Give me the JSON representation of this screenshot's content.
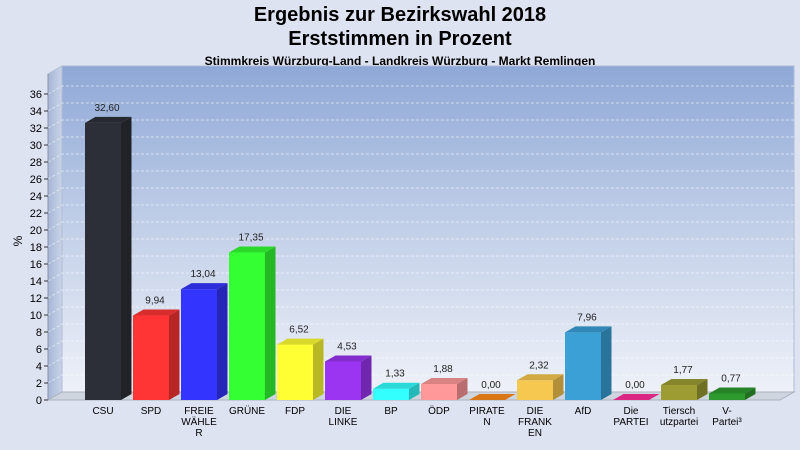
{
  "header": {
    "title_line1": "Ergebnis zur Bezirkswahl 2018",
    "title_line2": "Erststimmen in Prozent",
    "subtitle": "Stimmkreis Würzburg-Land - Landkreis Würzburg - Markt Remlingen"
  },
  "chart_data": {
    "type": "bar",
    "title": "Ergebnis zur Bezirkswahl 2018 Erststimmen in Prozent",
    "subtitle": "Stimmkreis Würzburg-Land - Landkreis Würzburg - Markt Remlingen",
    "ylabel": "%",
    "xlabel": "",
    "ylim": [
      0,
      36
    ],
    "yticks": [
      0,
      2,
      4,
      6,
      8,
      10,
      12,
      14,
      16,
      18,
      20,
      22,
      24,
      26,
      28,
      30,
      32,
      34,
      36
    ],
    "grid": true,
    "categories": [
      [
        "CSU"
      ],
      [
        "SPD"
      ],
      [
        "FREIE",
        "WÄHLE",
        "R"
      ],
      [
        "GRÜNE"
      ],
      [
        "FDP"
      ],
      [
        "DIE",
        "LINKE"
      ],
      [
        "BP"
      ],
      [
        "ÖDP"
      ],
      [
        "PIRATE",
        "N"
      ],
      [
        "DIE",
        "FRANK",
        "EN"
      ],
      [
        "AfD"
      ],
      [
        "Die",
        "PARTEI"
      ],
      [
        "Tiersch",
        "utzpartei"
      ],
      [
        "V-",
        "Partei³"
      ]
    ],
    "values": [
      32.6,
      9.94,
      13.04,
      17.35,
      6.52,
      4.53,
      1.33,
      1.88,
      0.0,
      2.32,
      7.96,
      0.0,
      1.77,
      0.77
    ],
    "value_labels": [
      "32,60",
      "9,94",
      "13,04",
      "17,35",
      "6,52",
      "4,53",
      "1,33",
      "1,88",
      "0,00",
      "2,32",
      "7,96",
      "0,00",
      "1,77",
      "0,77"
    ],
    "colors": [
      "#2d2f38",
      "#ff3434",
      "#3434ff",
      "#33ff33",
      "#ffff33",
      "#9b35f2",
      "#33ffff",
      "#ff9999",
      "#ff8c1a",
      "#f7c850",
      "#3aa0d6",
      "#ff2e9a",
      "#9c9c33",
      "#2e9a2e"
    ]
  }
}
